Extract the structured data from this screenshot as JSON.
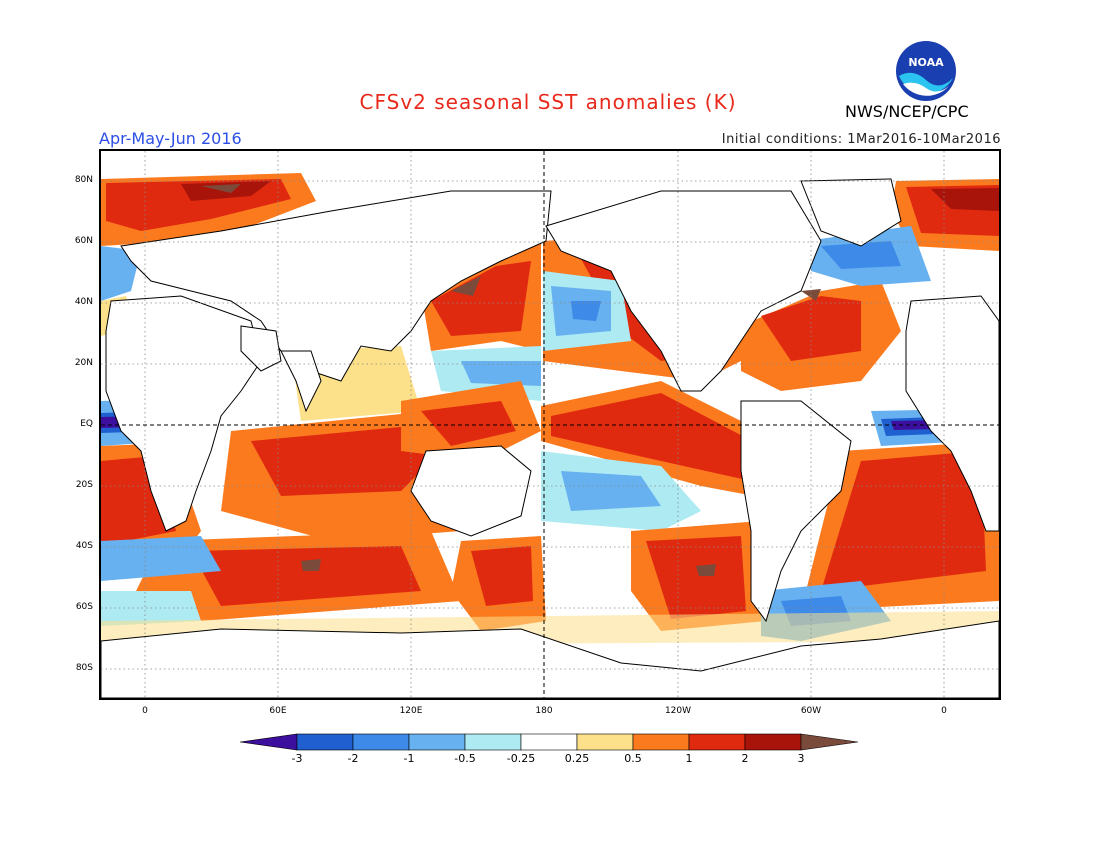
{
  "header": {
    "title": "CFSv2 seasonal SST anomalies (K)",
    "org": "NWS/NCEP/CPC",
    "logo_text": "NOAA",
    "period": "Apr-May-Jun 2016",
    "initial_conditions": "Initial conditions: 1Mar2016-10Mar2016"
  },
  "map": {
    "lat_labels": [
      "80N",
      "60N",
      "40N",
      "20N",
      "EQ",
      "20S",
      "40S",
      "60S",
      "80S"
    ],
    "lon_labels": [
      "0",
      "60E",
      "120E",
      "180",
      "120W",
      "60W",
      "0"
    ]
  },
  "colorbar": {
    "labels": [
      "-3",
      "-2",
      "-1",
      "-0.5",
      "-0.25",
      "0.25",
      "0.5",
      "1",
      "2",
      "3"
    ],
    "colors": [
      "#3d0f9e",
      "#1f5fd0",
      "#3d8ae8",
      "#68b1f0",
      "#aeeaf2",
      "#ffffff",
      "#fde08a",
      "#fc7a1e",
      "#e02a10",
      "#a8140a",
      "#7a4a3a"
    ]
  }
}
